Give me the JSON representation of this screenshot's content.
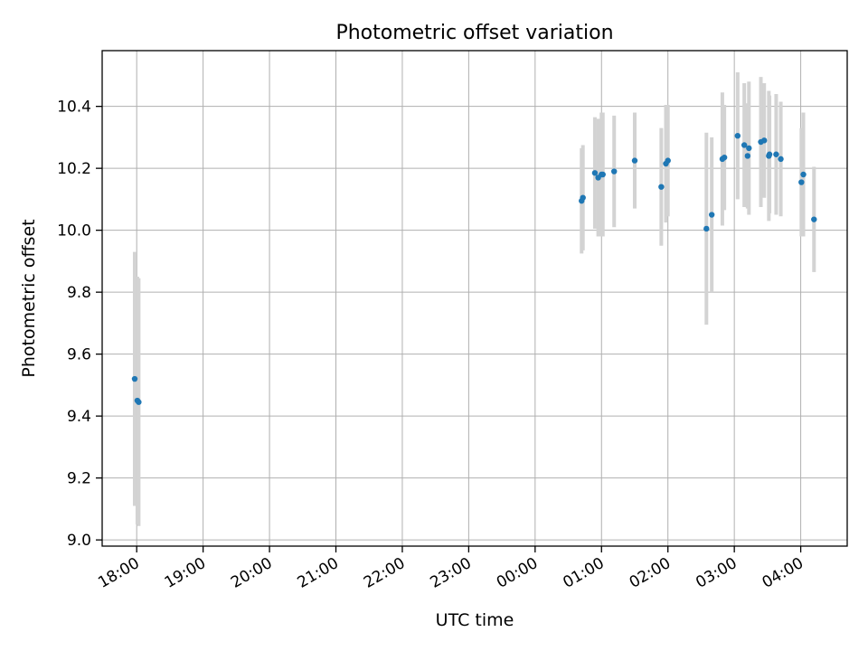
{
  "chart_data": {
    "type": "scatter",
    "title": "Photometric offset variation",
    "xlabel": "UTC time",
    "ylabel": "Photometric offset",
    "xlim": [
      17.48,
      28.7
    ],
    "ylim": [
      8.98,
      10.58
    ],
    "grid": true,
    "x_ticks": [
      {
        "value": 18,
        "label": "18:00"
      },
      {
        "value": 19,
        "label": "19:00"
      },
      {
        "value": 20,
        "label": "20:00"
      },
      {
        "value": 21,
        "label": "21:00"
      },
      {
        "value": 22,
        "label": "22:00"
      },
      {
        "value": 23,
        "label": "23:00"
      },
      {
        "value": 24,
        "label": "00:00"
      },
      {
        "value": 25,
        "label": "01:00"
      },
      {
        "value": 26,
        "label": "02:00"
      },
      {
        "value": 27,
        "label": "03:00"
      },
      {
        "value": 28,
        "label": "04:00"
      }
    ],
    "y_ticks": [
      {
        "value": 9.0,
        "label": "9.0"
      },
      {
        "value": 9.2,
        "label": "9.2"
      },
      {
        "value": 9.4,
        "label": "9.4"
      },
      {
        "value": 9.6,
        "label": "9.6"
      },
      {
        "value": 9.8,
        "label": "9.8"
      },
      {
        "value": 10.0,
        "label": "10.0"
      },
      {
        "value": 10.2,
        "label": "10.2"
      },
      {
        "value": 10.4,
        "label": "10.4"
      }
    ],
    "point_color": "#1f77b4",
    "errorbar_color": "#d3d3d3",
    "points": [
      {
        "x": 17.97,
        "y": 9.52,
        "err": 0.41
      },
      {
        "x": 18.01,
        "y": 9.45,
        "err": 0.4
      },
      {
        "x": 18.03,
        "y": 9.445,
        "err": 0.4
      },
      {
        "x": 24.7,
        "y": 10.095,
        "err": 0.17
      },
      {
        "x": 24.72,
        "y": 10.105,
        "err": 0.17
      },
      {
        "x": 24.9,
        "y": 10.185,
        "err": 0.18
      },
      {
        "x": 24.95,
        "y": 10.17,
        "err": 0.19
      },
      {
        "x": 25.0,
        "y": 10.18,
        "err": 0.2
      },
      {
        "x": 25.02,
        "y": 10.18,
        "err": 0.2
      },
      {
        "x": 25.19,
        "y": 10.19,
        "err": 0.18
      },
      {
        "x": 25.5,
        "y": 10.225,
        "err": 0.155
      },
      {
        "x": 25.9,
        "y": 10.14,
        "err": 0.19
      },
      {
        "x": 25.97,
        "y": 10.215,
        "err": 0.19
      },
      {
        "x": 26.0,
        "y": 10.225,
        "err": 0.18
      },
      {
        "x": 26.58,
        "y": 10.005,
        "err": 0.31
      },
      {
        "x": 26.66,
        "y": 10.05,
        "err": 0.25
      },
      {
        "x": 26.82,
        "y": 10.23,
        "err": 0.215
      },
      {
        "x": 26.85,
        "y": 10.235,
        "err": 0.17
      },
      {
        "x": 27.05,
        "y": 10.305,
        "err": 0.205
      },
      {
        "x": 27.15,
        "y": 10.275,
        "err": 0.2
      },
      {
        "x": 27.2,
        "y": 10.24,
        "err": 0.17
      },
      {
        "x": 27.22,
        "y": 10.265,
        "err": 0.215
      },
      {
        "x": 27.4,
        "y": 10.285,
        "err": 0.21
      },
      {
        "x": 27.45,
        "y": 10.29,
        "err": 0.185
      },
      {
        "x": 27.52,
        "y": 10.24,
        "err": 0.21
      },
      {
        "x": 27.53,
        "y": 10.245,
        "err": 0.19
      },
      {
        "x": 27.63,
        "y": 10.245,
        "err": 0.195
      },
      {
        "x": 27.7,
        "y": 10.23,
        "err": 0.185
      },
      {
        "x": 28.01,
        "y": 10.155,
        "err": 0.175
      },
      {
        "x": 28.04,
        "y": 10.18,
        "err": 0.2
      },
      {
        "x": 28.2,
        "y": 10.035,
        "err": 0.17
      }
    ]
  }
}
